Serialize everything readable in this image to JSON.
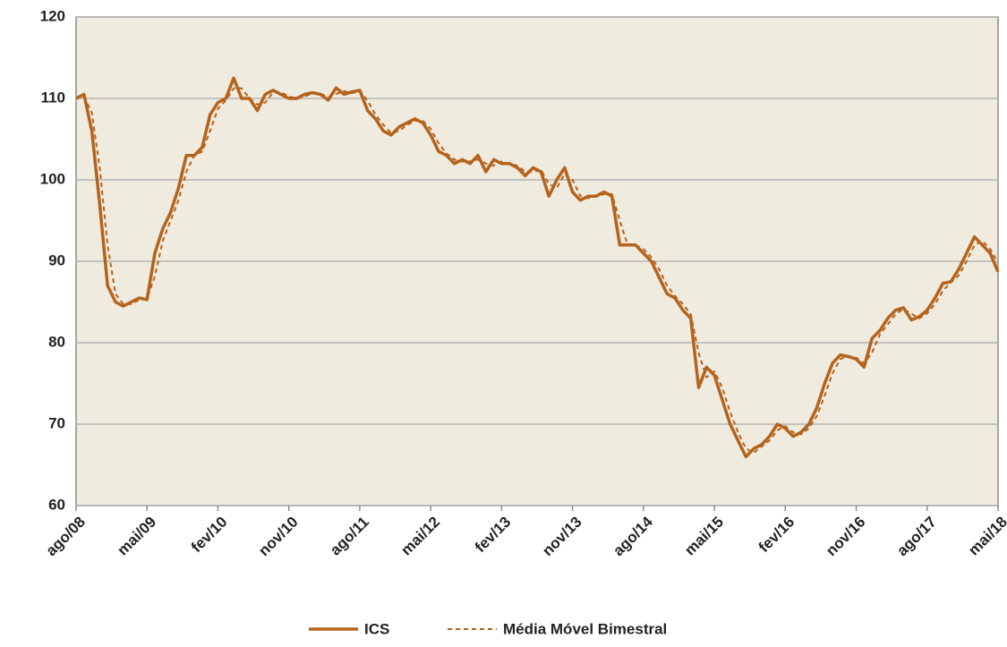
{
  "chart_data": {
    "type": "line",
    "categories": [
      "ago/08",
      null,
      null,
      null,
      null,
      null,
      null,
      null,
      null,
      "mai/09",
      null,
      null,
      null,
      null,
      null,
      null,
      null,
      null,
      "fev/10",
      null,
      null,
      null,
      null,
      null,
      null,
      null,
      null,
      "nov/10",
      null,
      null,
      null,
      null,
      null,
      null,
      null,
      null,
      "ago/11",
      null,
      null,
      null,
      null,
      null,
      null,
      null,
      null,
      "mai/12",
      null,
      null,
      null,
      null,
      null,
      null,
      null,
      null,
      "fev/13",
      null,
      null,
      null,
      null,
      null,
      null,
      null,
      null,
      "nov/13",
      null,
      null,
      null,
      null,
      null,
      null,
      null,
      null,
      "ago/14",
      null,
      null,
      null,
      null,
      null,
      null,
      null,
      null,
      "mai/15",
      null,
      null,
      null,
      null,
      null,
      null,
      null,
      null,
      "fev/16",
      null,
      null,
      null,
      null,
      null,
      null,
      null,
      null,
      "nov/16",
      null,
      null,
      null,
      null,
      null,
      null,
      null,
      null,
      "ago/17",
      null,
      null,
      null,
      null,
      null,
      null,
      null,
      null,
      "mai/18"
    ],
    "series": [
      {
        "name": "ICS",
        "color": "#b5631c",
        "dash": false,
        "values": [
          110,
          110.5,
          106,
          97,
          87,
          85,
          84.5,
          85,
          85.5,
          85.3,
          91,
          94,
          96,
          99,
          103,
          103,
          104,
          108,
          109.5,
          110,
          112.5,
          110,
          110,
          108.5,
          110.5,
          111,
          110.5,
          110,
          110,
          110.5,
          110.7,
          110.5,
          109.8,
          111.3,
          110.5,
          110.8,
          111,
          108.5,
          107.5,
          106,
          105.5,
          106.5,
          107,
          107.5,
          107,
          105.5,
          103.5,
          103,
          102,
          102.5,
          102,
          103,
          101,
          102.5,
          102,
          102,
          101.5,
          100.5,
          101.5,
          101,
          98,
          100,
          101.5,
          98.5,
          97.5,
          98,
          98,
          98.5,
          98,
          92,
          92,
          92,
          91,
          90,
          88,
          86,
          85.5,
          84,
          83,
          74.5,
          77,
          76,
          73,
          70,
          68,
          66,
          67,
          67.5,
          68.5,
          70,
          69.5,
          68.5,
          69,
          70,
          72,
          75,
          77.5,
          78.5,
          78.3,
          78,
          77,
          80.5,
          81.5,
          83,
          84,
          84.3,
          82.8,
          83.2,
          84,
          85.5,
          87.3,
          87.5,
          89,
          91,
          93,
          92,
          91,
          88.7
        ]
      },
      {
        "name": "Média Móvel Bimestral",
        "color": "#b5631c",
        "dash": true,
        "values": [
          null,
          110.25,
          108.25,
          101.5,
          92,
          86,
          84.75,
          84.75,
          85.25,
          85.4,
          88.15,
          92.5,
          95,
          97.5,
          101,
          103,
          103.5,
          106,
          108.75,
          109.75,
          111.25,
          111.25,
          110,
          109.25,
          109.5,
          110.75,
          110.75,
          110.25,
          110,
          110.25,
          110.6,
          110.6,
          110.15,
          110.55,
          110.9,
          110.65,
          110.9,
          109.75,
          108,
          106.75,
          105.75,
          106,
          106.75,
          107.25,
          107.25,
          106.25,
          104.5,
          103.25,
          102.5,
          102.25,
          102.25,
          102.5,
          102,
          101.75,
          102.25,
          102,
          101.75,
          101,
          101,
          101.25,
          99.5,
          99,
          100.75,
          100,
          98,
          97.75,
          98,
          98.25,
          98.25,
          95,
          92,
          92,
          91.5,
          90.5,
          89,
          87,
          85.75,
          84.75,
          83.5,
          78.75,
          75.75,
          76.5,
          74.5,
          71.5,
          69,
          67,
          66.5,
          67.25,
          68,
          69.25,
          69.75,
          69,
          68.75,
          69.5,
          71,
          73.5,
          76.25,
          78,
          78.4,
          78.15,
          77.5,
          78.75,
          81,
          82.25,
          83.5,
          84.15,
          83.55,
          83,
          83.6,
          84.75,
          86.4,
          87.4,
          88.25,
          90,
          92,
          92.5,
          91.5,
          89.85
        ]
      }
    ],
    "ylim": [
      60,
      120
    ],
    "yticks": [
      60,
      70,
      80,
      90,
      100,
      110,
      120
    ],
    "grid": true,
    "legend": "bottom"
  }
}
